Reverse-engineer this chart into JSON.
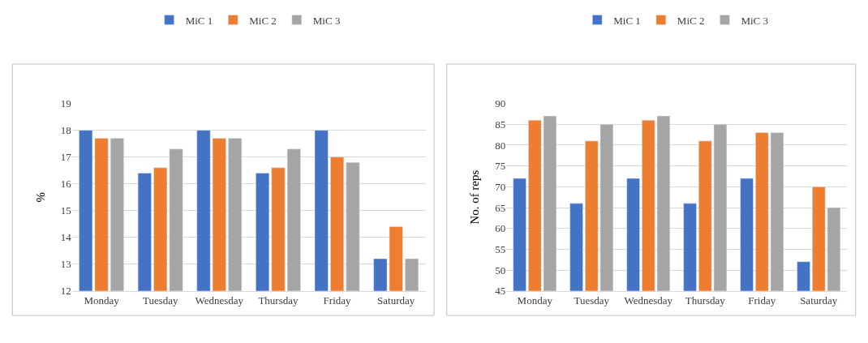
{
  "chart_data": [
    {
      "type": "bar",
      "ylabel": "%",
      "categories": [
        "Monday",
        "Tuesday",
        "Wednesday",
        "Thursday",
        "Friday",
        "Saturday"
      ],
      "series": [
        {
          "name": "MiC 1",
          "color": "#4472c4",
          "values": [
            18,
            16.4,
            18,
            16.4,
            18,
            13.2
          ]
        },
        {
          "name": "MiC 2",
          "color": "#ed7d31",
          "values": [
            17.7,
            16.6,
            17.7,
            16.6,
            17.0,
            14.4
          ]
        },
        {
          "name": "MiC 3",
          "color": "#a5a5a5",
          "values": [
            17.7,
            17.3,
            17.7,
            17.3,
            16.8,
            13.2
          ]
        }
      ],
      "ylim": [
        12,
        19
      ],
      "yticks": [
        12,
        13,
        14,
        15,
        16,
        17,
        18,
        19
      ],
      "grid": "y",
      "legend": "top"
    },
    {
      "type": "bar",
      "ylabel": "No. of reps",
      "categories": [
        "Monday",
        "Tuesday",
        "Wednesday",
        "Thursday",
        "Friday",
        "Saturday"
      ],
      "series": [
        {
          "name": "MiC 1",
          "color": "#4472c4",
          "values": [
            72,
            66,
            72,
            66,
            72,
            52
          ]
        },
        {
          "name": "MiC 2",
          "color": "#ed7d31",
          "values": [
            86,
            81,
            86,
            81,
            83,
            70
          ]
        },
        {
          "name": "MiC 3",
          "color": "#a5a5a5",
          "values": [
            87,
            85,
            87,
            85,
            83,
            65
          ]
        }
      ],
      "ylim": [
        45,
        90
      ],
      "yticks": [
        45,
        50,
        55,
        60,
        65,
        70,
        75,
        80,
        85,
        90
      ],
      "grid": "y",
      "legend": "top"
    }
  ]
}
